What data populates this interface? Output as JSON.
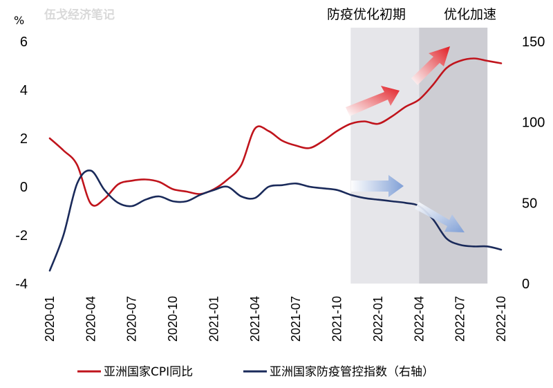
{
  "watermark": "伍戈经济笔记",
  "chart_data": {
    "type": "line",
    "y_unit_left": "%",
    "x": [
      "2020-01",
      "2020-02",
      "2020-03",
      "2020-04",
      "2020-05",
      "2020-06",
      "2020-07",
      "2020-08",
      "2020-09",
      "2020-10",
      "2020-11",
      "2020-12",
      "2021-01",
      "2021-02",
      "2021-03",
      "2021-04",
      "2021-05",
      "2021-06",
      "2021-07",
      "2021-08",
      "2021-09",
      "2021-10",
      "2021-11",
      "2021-12",
      "2022-01",
      "2022-02",
      "2022-03",
      "2022-04",
      "2022-05",
      "2022-06",
      "2022-07",
      "2022-08",
      "2022-09",
      "2022-10"
    ],
    "x_tick_labels": [
      "2020-01",
      "2020-04",
      "2020-07",
      "2020-10",
      "2021-01",
      "2021-04",
      "2021-07",
      "2021-10",
      "2022-01",
      "2022-04",
      "2022-07",
      "2022-10"
    ],
    "left_axis": {
      "ticks": [
        "6",
        "4",
        "2",
        "0",
        "-2",
        "-4"
      ],
      "ylim": [
        -4,
        6
      ]
    },
    "right_axis": {
      "ticks": [
        "150",
        "100",
        "50",
        "0"
      ],
      "ylim": [
        0,
        150
      ]
    },
    "series": [
      {
        "name": "亚洲国家CPI同比",
        "axis": "left",
        "color": "#c0141c",
        "values": [
          2.0,
          1.5,
          0.9,
          -0.7,
          -0.5,
          0.1,
          0.25,
          0.3,
          0.2,
          -0.1,
          -0.2,
          -0.3,
          -0.1,
          0.3,
          0.9,
          2.4,
          2.3,
          1.9,
          1.7,
          1.6,
          1.9,
          2.3,
          2.6,
          2.7,
          2.6,
          2.9,
          3.3,
          3.6,
          4.2,
          4.9,
          5.2,
          5.3,
          5.2,
          5.1
        ]
      },
      {
        "name": "亚洲国家防疫管控指数（右轴）",
        "axis": "right",
        "color": "#1a2a5a",
        "values": [
          8,
          30,
          62,
          70,
          58,
          50,
          48,
          52,
          54,
          51,
          51,
          55,
          58,
          60,
          54,
          53,
          60,
          61,
          62,
          60,
          59,
          58,
          55,
          53,
          52,
          51,
          50,
          48,
          40,
          28,
          24,
          23,
          23,
          21
        ]
      }
    ],
    "shaded_regions": [
      {
        "label": "防疫优化初期",
        "start": "2021-11",
        "end": "2022-04",
        "color": "#e6e6ea"
      },
      {
        "label": "优化加速",
        "start": "2022-04",
        "end": "2022-09",
        "color": "#cdcdd3"
      }
    ],
    "annotations": [
      {
        "kind": "arrow",
        "color": "#e11b22",
        "direction": "up"
      },
      {
        "kind": "arrow",
        "color": "#e11b22",
        "direction": "up"
      },
      {
        "kind": "arrow",
        "color": "#7f9fd6",
        "direction": "right"
      },
      {
        "kind": "arrow",
        "color": "#7f9fd6",
        "direction": "down"
      }
    ],
    "legend_position": "bottom",
    "grid": false
  }
}
